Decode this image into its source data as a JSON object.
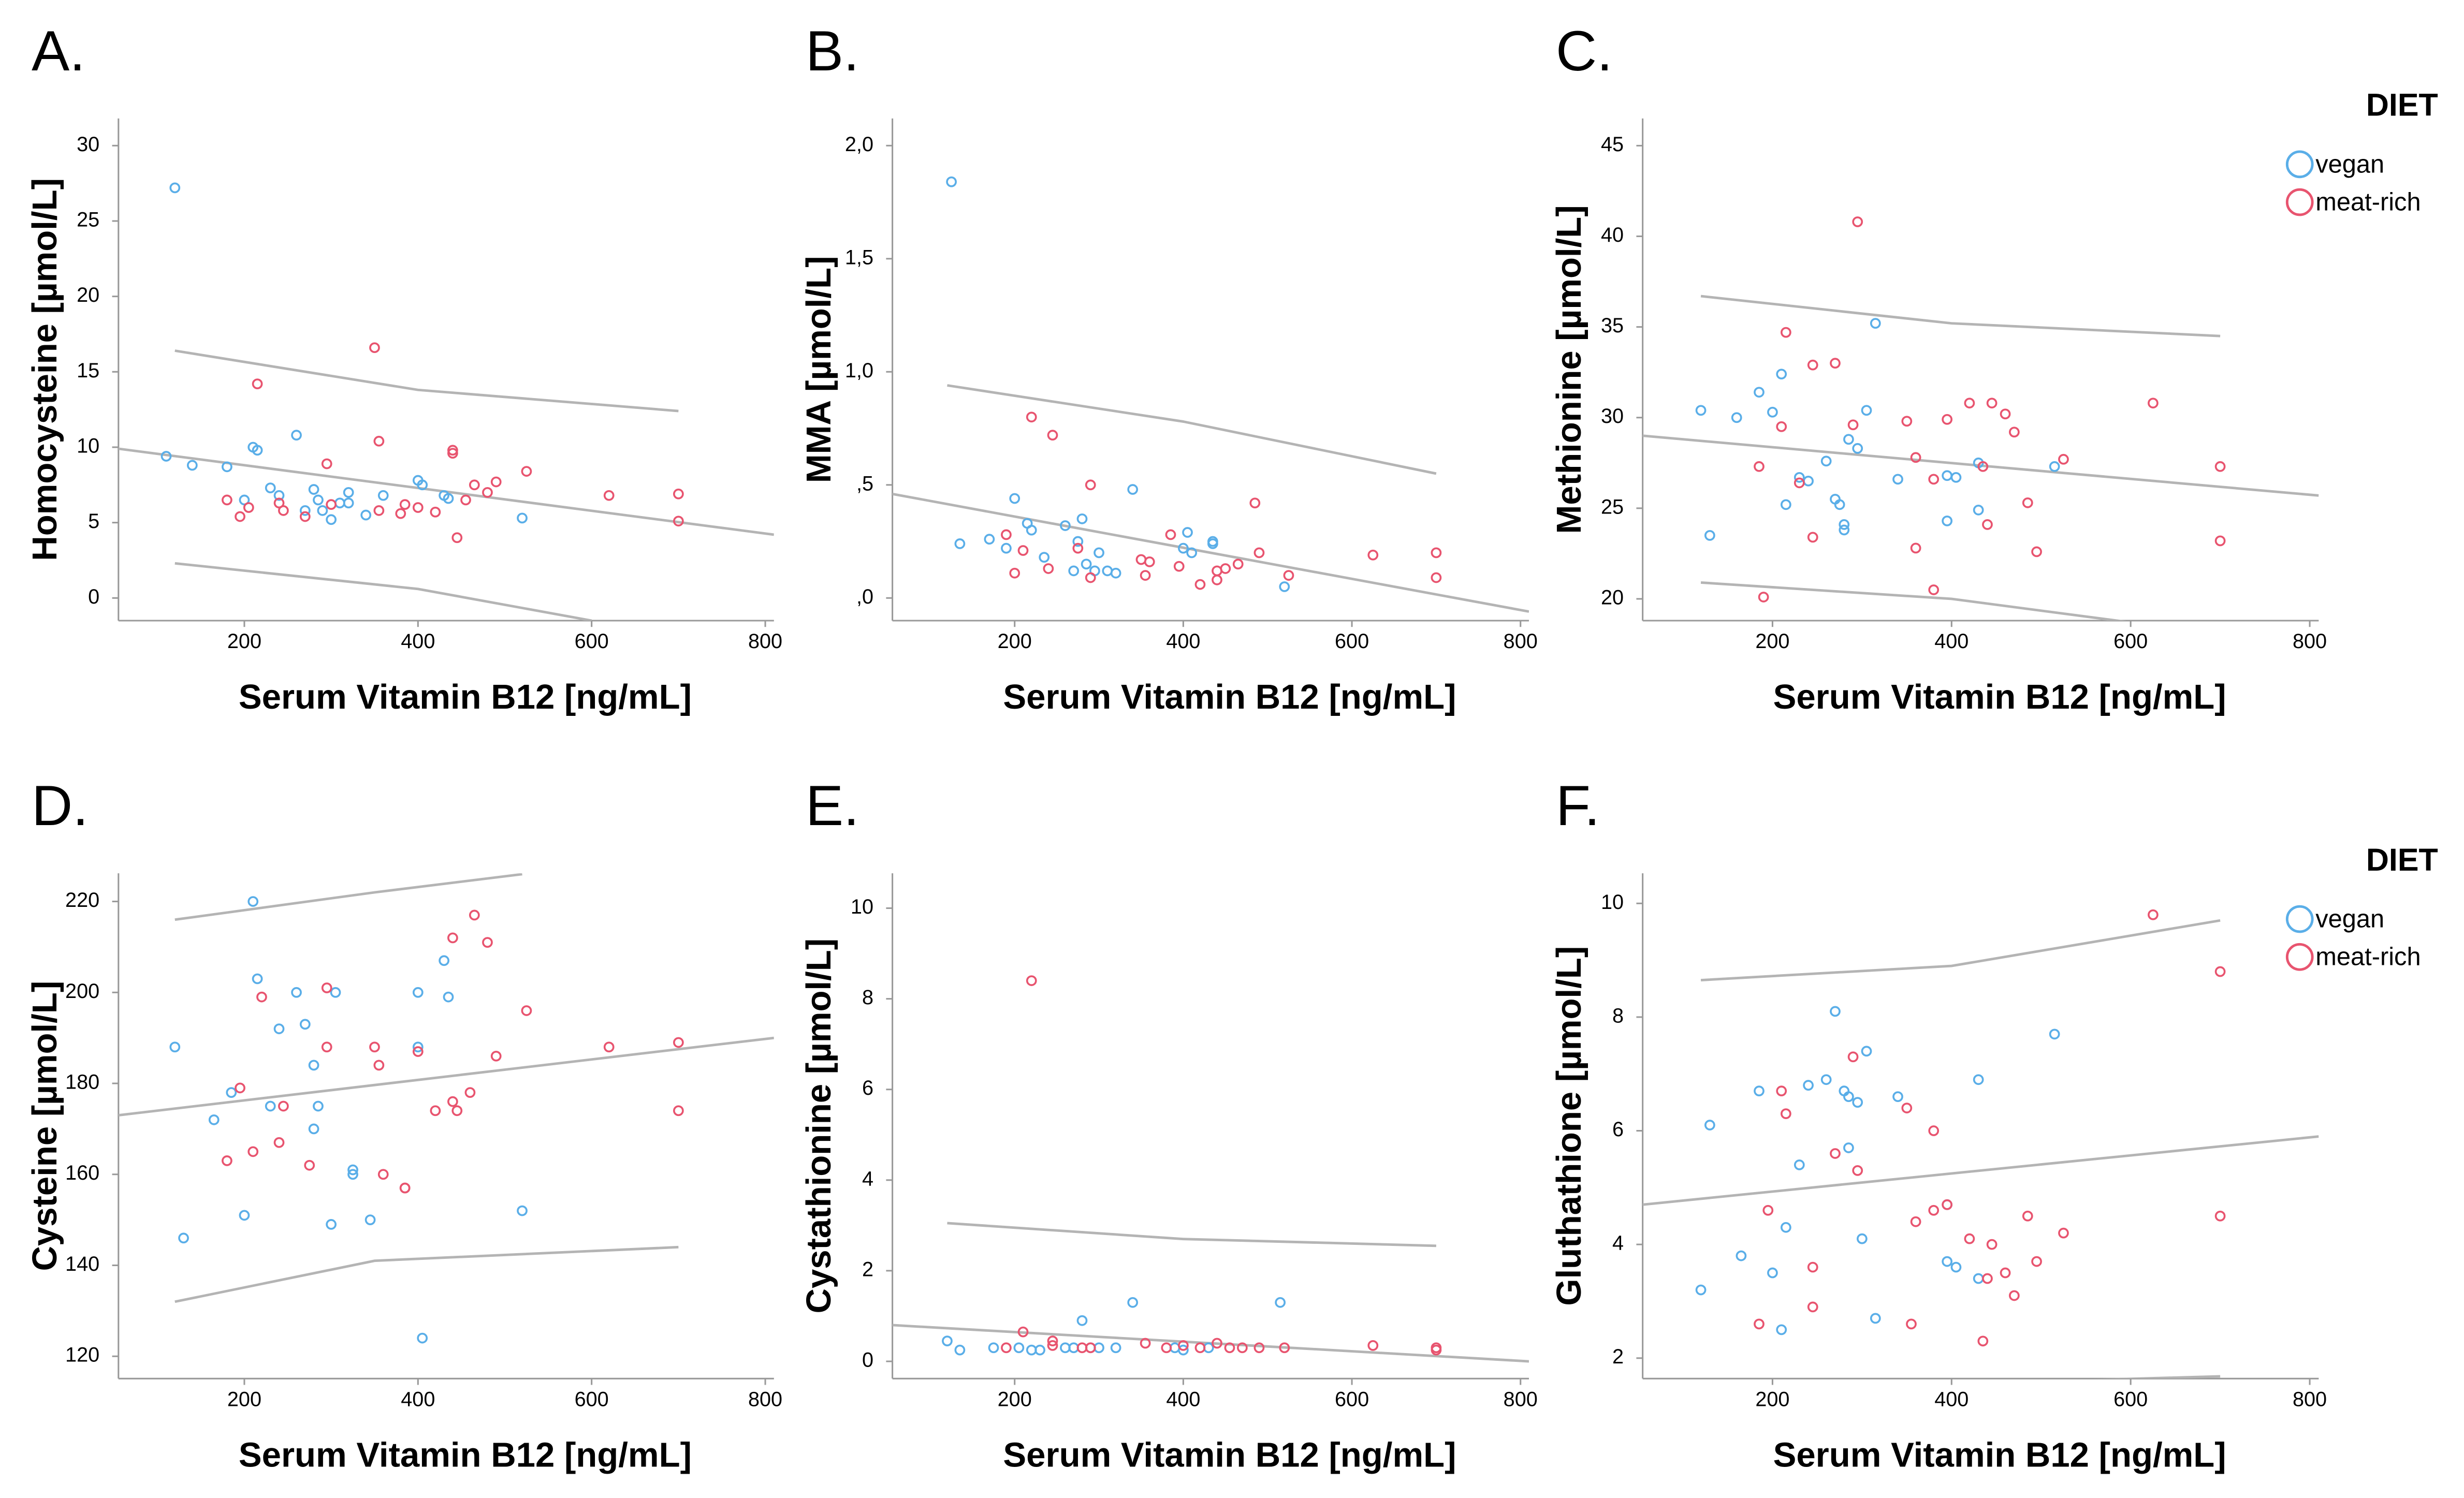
{
  "chart_data": [
    {
      "type": "scatter",
      "panel": "A.",
      "xlabel": "Serum Vitamin B12 [ng/mL]",
      "ylabel": "Homocysteine  [µmol/L]",
      "xlim": [
        55,
        810
      ],
      "ylim": [
        -1.5,
        31.8
      ],
      "xticks": [
        200,
        400,
        600,
        800
      ],
      "yticks": [
        0,
        5,
        10,
        15,
        20,
        25,
        30
      ],
      "series": [
        {
          "name": "vegan",
          "color": "#5aaee8",
          "x": [
            120,
            140,
            180,
            200,
            210,
            215,
            230,
            240,
            260,
            270,
            280,
            285,
            290,
            300,
            310,
            320,
            320,
            340,
            360,
            400,
            405,
            430,
            435,
            520,
            110
          ],
          "values": [
            27.2,
            8.8,
            8.7,
            6.5,
            10,
            9.8,
            7.3,
            6.8,
            10.8,
            5.8,
            7.2,
            6.5,
            5.8,
            5.2,
            6.3,
            7,
            6.3,
            5.5,
            6.8,
            7.8,
            7.5,
            6.8,
            6.6,
            5.3,
            9.4
          ]
        },
        {
          "name": "meat-rich",
          "color": "#e8546f",
          "x": [
            180,
            195,
            205,
            215,
            240,
            245,
            270,
            295,
            300,
            350,
            355,
            355,
            380,
            385,
            400,
            420,
            440,
            440,
            445,
            455,
            465,
            480,
            490,
            525,
            620,
            700,
            700
          ],
          "values": [
            6.5,
            5.4,
            6.0,
            14.2,
            6.3,
            5.8,
            5.4,
            8.9,
            6.2,
            16.6,
            10.4,
            5.8,
            5.6,
            6.2,
            6.0,
            5.7,
            9.8,
            9.6,
            4.0,
            6.5,
            7.5,
            7.0,
            7.7,
            8.4,
            6.8,
            6.9,
            5.1
          ]
        }
      ],
      "fit_lines": [
        {
          "color": "#b4b4b4",
          "x": [
            55,
            810
          ],
          "y": [
            9.9,
            4.2
          ]
        },
        {
          "color": "#b4b4b4",
          "x": [
            120,
            400,
            700
          ],
          "y": [
            16.4,
            13.8,
            12.4
          ]
        },
        {
          "color": "#b4b4b4",
          "x": [
            120,
            400,
            600
          ],
          "y": [
            2.3,
            0.6,
            -1.5
          ]
        }
      ]
    },
    {
      "type": "scatter",
      "panel": "B.",
      "xlabel": "Serum Vitamin B12 [ng/mL]",
      "ylabel": "MMA  [µmol/L]",
      "xlim": [
        55,
        810
      ],
      "ylim": [
        -0.1,
        2.12
      ],
      "xticks": [
        200,
        400,
        600,
        800
      ],
      "yticks": [
        {
          "value": 0,
          "label": ",0"
        },
        {
          "value": 0.5,
          "label": ",5"
        },
        {
          "value": 1,
          "label": "1,0"
        },
        {
          "value": 1.5,
          "label": "1,5"
        },
        {
          "value": 2,
          "label": "2,0"
        }
      ],
      "series": [
        {
          "name": "vegan",
          "color": "#5aaee8",
          "x": [
            125,
            135,
            170,
            190,
            200,
            215,
            220,
            235,
            260,
            270,
            275,
            280,
            285,
            295,
            300,
            310,
            320,
            340,
            400,
            405,
            410,
            435,
            435,
            520
          ],
          "values": [
            1.84,
            0.24,
            0.26,
            0.22,
            0.44,
            0.33,
            0.3,
            0.18,
            0.32,
            0.12,
            0.25,
            0.35,
            0.15,
            0.12,
            0.2,
            0.12,
            0.11,
            0.48,
            0.22,
            0.29,
            0.2,
            0.24,
            0.25,
            0.05
          ]
        },
        {
          "name": "meat-rich",
          "color": "#e8546f",
          "x": [
            190,
            200,
            210,
            220,
            240,
            245,
            275,
            290,
            290,
            350,
            355,
            360,
            385,
            395,
            420,
            440,
            440,
            450,
            465,
            485,
            490,
            525,
            625,
            700,
            700
          ],
          "values": [
            0.28,
            0.11,
            0.21,
            0.8,
            0.13,
            0.72,
            0.22,
            0.09,
            0.5,
            0.17,
            0.1,
            0.16,
            0.28,
            0.14,
            0.06,
            0.08,
            0.12,
            0.13,
            0.15,
            0.42,
            0.2,
            0.1,
            0.19,
            0.2,
            0.09
          ]
        }
      ],
      "fit_lines": [
        {
          "color": "#b4b4b4",
          "x": [
            55,
            810
          ],
          "y": [
            0.46,
            -0.06
          ]
        },
        {
          "color": "#b4b4b4",
          "x": [
            120,
            400,
            700
          ],
          "y": [
            0.94,
            0.78,
            0.55
          ]
        }
      ]
    },
    {
      "type": "scatter",
      "panel": "C.",
      "xlabel": "Serum Vitamin B12 [ng/mL]",
      "ylabel": "Methionine  [µmol/L]",
      "xlim": [
        55,
        810
      ],
      "ylim": [
        18.8,
        46.5
      ],
      "xticks": [
        200,
        400,
        600,
        800
      ],
      "yticks": [
        20,
        25,
        30,
        35,
        40,
        45
      ],
      "legend_title": "DIET",
      "series": [
        {
          "name": "vegan",
          "color": "#5aaee8",
          "x": [
            120,
            130,
            160,
            185,
            200,
            210,
            215,
            230,
            240,
            260,
            270,
            275,
            280,
            280,
            285,
            295,
            305,
            315,
            340,
            395,
            395,
            405,
            430,
            430,
            515
          ],
          "values": [
            30.4,
            23.5,
            30,
            31.4,
            30.3,
            32.4,
            25.2,
            26.7,
            26.5,
            27.6,
            25.5,
            25.2,
            24.1,
            23.8,
            28.8,
            28.3,
            30.4,
            35.2,
            26.6,
            24.3,
            26.8,
            26.7,
            27.5,
            24.9,
            27.3
          ]
        },
        {
          "name": "meat-rich",
          "color": "#e8546f",
          "x": [
            185,
            190,
            210,
            215,
            230,
            245,
            245,
            270,
            290,
            295,
            350,
            360,
            360,
            380,
            380,
            395,
            420,
            435,
            440,
            445,
            460,
            470,
            485,
            495,
            525,
            625,
            700,
            700
          ],
          "values": [
            27.3,
            20.1,
            29.5,
            34.7,
            26.4,
            23.4,
            32.9,
            33,
            29.6,
            40.8,
            29.8,
            27.8,
            22.8,
            26.6,
            20.5,
            29.9,
            30.8,
            27.3,
            24.1,
            30.8,
            30.2,
            29.2,
            25.3,
            22.6,
            27.7,
            30.8,
            27.3,
            23.2
          ]
        }
      ],
      "fit_lines": [
        {
          "color": "#b4b4b4",
          "x": [
            55,
            810
          ],
          "y": [
            29,
            25.7
          ]
        },
        {
          "color": "#b4b4b4",
          "x": [
            120,
            400,
            700
          ],
          "y": [
            36.7,
            35.2,
            34.5
          ]
        },
        {
          "color": "#b4b4b4",
          "x": [
            120,
            400,
            600
          ],
          "y": [
            20.9,
            20,
            18.7
          ]
        }
      ]
    },
    {
      "type": "scatter",
      "panel": "D.",
      "xlabel": "Serum Vitamin B12 [ng/mL]",
      "ylabel": "Cysteine [µmol/L]",
      "xlim": [
        55,
        810
      ],
      "ylim": [
        115.1,
        226.2
      ],
      "xticks": [
        200,
        400,
        600,
        800
      ],
      "yticks": [
        120,
        140,
        160,
        180,
        200,
        220
      ],
      "series": [
        {
          "name": "vegan",
          "color": "#5aaee8",
          "x": [
            120,
            130,
            165,
            185,
            200,
            210,
            215,
            230,
            240,
            260,
            270,
            280,
            280,
            285,
            300,
            305,
            325,
            325,
            345,
            400,
            400,
            405,
            430,
            435,
            520
          ],
          "values": [
            188,
            146,
            172,
            178,
            151,
            220,
            203,
            175,
            192,
            200,
            193,
            184,
            170,
            175,
            149,
            200,
            161,
            160,
            150,
            200,
            188,
            124,
            207,
            199,
            152
          ]
        },
        {
          "name": "meat-rich",
          "color": "#e8546f",
          "x": [
            180,
            195,
            210,
            220,
            240,
            245,
            275,
            295,
            295,
            350,
            355,
            360,
            385,
            385,
            400,
            420,
            440,
            440,
            445,
            460,
            465,
            480,
            490,
            525,
            620,
            700,
            700
          ],
          "values": [
            163,
            179,
            165,
            199,
            167,
            175,
            162,
            201,
            188,
            188,
            184,
            160,
            157,
            157,
            187,
            174,
            176,
            212,
            174,
            178,
            217,
            211,
            186,
            196,
            188,
            189,
            174
          ]
        }
      ],
      "fit_lines": [
        {
          "color": "#b4b4b4",
          "x": [
            55,
            810
          ],
          "y": [
            173,
            190
          ]
        },
        {
          "color": "#b4b4b4",
          "x": [
            120,
            350,
            520
          ],
          "y": [
            216,
            222,
            226
          ]
        },
        {
          "color": "#b4b4b4",
          "x": [
            120,
            350,
            700
          ],
          "y": [
            132,
            141,
            144
          ]
        }
      ]
    },
    {
      "type": "scatter",
      "panel": "E.",
      "xlabel": "Serum Vitamin B12 [ng/mL]",
      "ylabel": "Cystathionine  [µmol/L]",
      "xlim": [
        55,
        810
      ],
      "ylim": [
        -0.38,
        10.77
      ],
      "xticks": [
        200,
        400,
        600,
        800
      ],
      "yticks": [
        0,
        2,
        4,
        6,
        8,
        10
      ],
      "series": [
        {
          "name": "vegan",
          "color": "#5aaee8",
          "x": [
            120,
            135,
            175,
            205,
            220,
            230,
            260,
            270,
            280,
            290,
            300,
            320,
            340,
            390,
            400,
            430,
            515
          ],
          "values": [
            0.45,
            0.25,
            0.3,
            0.3,
            0.25,
            0.25,
            0.3,
            0.3,
            0.9,
            0.3,
            0.3,
            0.3,
            1.3,
            0.3,
            0.25,
            0.3,
            1.3
          ]
        },
        {
          "name": "meat-rich",
          "color": "#e8546f",
          "x": [
            190,
            210,
            220,
            245,
            245,
            280,
            290,
            355,
            380,
            400,
            420,
            440,
            455,
            470,
            490,
            520,
            625,
            700,
            700
          ],
          "values": [
            0.3,
            0.65,
            8.4,
            0.45,
            0.35,
            0.3,
            0.3,
            0.4,
            0.3,
            0.35,
            0.3,
            0.4,
            0.3,
            0.3,
            0.3,
            0.3,
            0.35,
            0.3,
            0.25
          ]
        }
      ],
      "fit_lines": [
        {
          "color": "#b4b4b4",
          "x": [
            55,
            810
          ],
          "y": [
            0.8,
            0
          ]
        },
        {
          "color": "#b4b4b4",
          "x": [
            120,
            400,
            700
          ],
          "y": [
            3.05,
            2.7,
            2.55
          ]
        }
      ]
    },
    {
      "type": "scatter",
      "panel": "F.",
      "xlabel": "Serum Vitamin B12 [ng/mL]",
      "ylabel": "Gluthathione  [µmol/L]",
      "xlim": [
        55,
        810
      ],
      "ylim": [
        1.64,
        10.53
      ],
      "xticks": [
        200,
        400,
        600,
        800
      ],
      "yticks": [
        2,
        4,
        6,
        8,
        10
      ],
      "legend_title": "DIET",
      "series": [
        {
          "name": "vegan",
          "color": "#5aaee8",
          "x": [
            120,
            130,
            165,
            185,
            200,
            210,
            215,
            230,
            240,
            260,
            270,
            280,
            285,
            285,
            295,
            300,
            305,
            315,
            340,
            395,
            395,
            405,
            430,
            430,
            515
          ],
          "values": [
            3.2,
            6.1,
            3.8,
            6.7,
            3.5,
            2.5,
            4.3,
            5.4,
            6.8,
            6.9,
            8.1,
            6.7,
            6.6,
            5.7,
            6.5,
            4.1,
            7.4,
            2.7,
            6.6,
            4.7,
            3.7,
            3.6,
            6.9,
            3.4,
            7.7
          ]
        },
        {
          "name": "meat-rich",
          "color": "#e8546f",
          "x": [
            185,
            195,
            210,
            215,
            245,
            245,
            270,
            290,
            295,
            350,
            355,
            360,
            380,
            380,
            395,
            420,
            435,
            440,
            445,
            460,
            470,
            485,
            495,
            525,
            625,
            700,
            700
          ],
          "values": [
            2.6,
            4.6,
            6.7,
            6.3,
            2.9,
            3.6,
            5.6,
            7.3,
            5.3,
            6.4,
            2.6,
            4.4,
            6.0,
            4.6,
            4.7,
            4.1,
            2.3,
            3.4,
            4.0,
            3.5,
            3.1,
            4.5,
            3.7,
            4.2,
            9.8,
            8.8,
            4.5
          ]
        }
      ],
      "fit_lines": [
        {
          "color": "#b4b4b4",
          "x": [
            55,
            810
          ],
          "y": [
            4.7,
            5.9
          ]
        },
        {
          "color": "#b4b4b4",
          "x": [
            120,
            400,
            700
          ],
          "y": [
            8.65,
            8.9,
            9.7
          ]
        },
        {
          "color": "#b4b4b4",
          "x": [
            520,
            700
          ],
          "y": [
            1.6,
            1.68
          ]
        }
      ]
    }
  ]
}
